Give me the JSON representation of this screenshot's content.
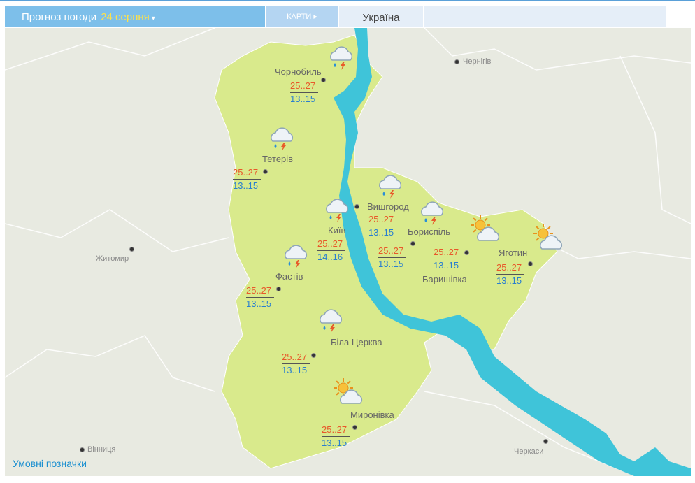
{
  "header": {
    "title": "Прогноз погоди",
    "date": "24 серпня",
    "maps_tab": "КАРТИ",
    "region_tab": "Україна"
  },
  "colors": {
    "region": "#d9ea8c",
    "river": "#3fc4d9",
    "header": "#7dbfea",
    "hi_temp": "#e8582a",
    "lo_temp": "#2a7fcf"
  },
  "forecasts": [
    {
      "city": "Чорнобиль",
      "hi": "25..27",
      "lo": "13..15",
      "icon": "cloud-rain-thunder"
    },
    {
      "city": "Тетерів",
      "hi": "25..27",
      "lo": "13..15",
      "icon": "cloud-rain-thunder"
    },
    {
      "city": "Вишгород",
      "hi": "25..27",
      "lo": "13..15",
      "icon": "cloud-rain-thunder"
    },
    {
      "city": "Київ",
      "hi": "25..27",
      "lo": "14..16",
      "icon": "cloud-rain-thunder"
    },
    {
      "city": "Бориспіль",
      "hi": "25..27",
      "lo": "13..15",
      "icon": "cloud-rain-thunder"
    },
    {
      "city": "Баришівка",
      "hi": "25..27",
      "lo": "13..15",
      "icon": "sun-cloud"
    },
    {
      "city": "Яготин",
      "hi": "25..27",
      "lo": "13..15",
      "icon": "sun-cloud"
    },
    {
      "city": "Фастів",
      "hi": "25..27",
      "lo": "13..15",
      "icon": "cloud-rain-thunder"
    },
    {
      "city": "Біла Церква",
      "hi": "25..27",
      "lo": "13..15",
      "icon": "cloud-rain-thunder"
    },
    {
      "city": "Миронівка",
      "hi": "25..27",
      "lo": "13..15",
      "icon": "sun-cloud"
    }
  ],
  "other_cities": [
    "Чернігів",
    "Житомир",
    "Черкаси",
    "Вінниця"
  ],
  "legend_link": "Умовні позначки"
}
